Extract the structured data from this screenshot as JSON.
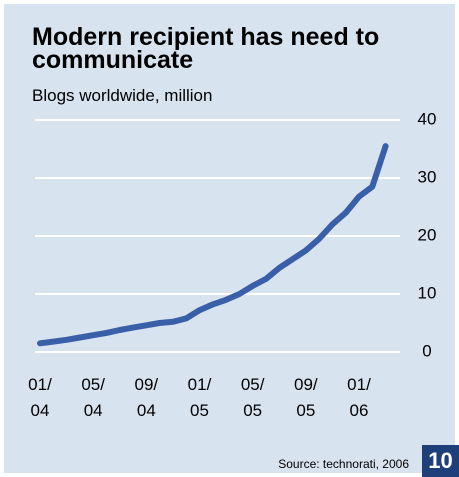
{
  "chart_data": {
    "type": "line",
    "title": "Modern recipient has need to communicate",
    "subtitle": "Blogs worldwide, million",
    "source": "Source: technorati, 2006",
    "page_number": "10",
    "categories": [
      "01/\n04",
      null,
      null,
      null,
      "05/\n04",
      null,
      null,
      null,
      "09/\n04",
      null,
      null,
      null,
      "01/\n05",
      null,
      null,
      null,
      "05/\n05",
      null,
      null,
      null,
      "09/\n05",
      null,
      null,
      null,
      "01/\n06",
      null,
      null
    ],
    "series": [
      {
        "name": "Blogs worldwide",
        "color": "#3a5fa9",
        "values": [
          1.5,
          1.8,
          2.1,
          2.5,
          2.9,
          3.3,
          3.8,
          4.2,
          4.6,
          5.0,
          5.2,
          5.8,
          7.2,
          8.2,
          9.0,
          10.0,
          11.4,
          12.6,
          14.5,
          16.0,
          17.5,
          19.5,
          22.0,
          24.0,
          26.8,
          28.5,
          35.5
        ]
      }
    ],
    "ylim": [
      0,
      40
    ],
    "yticks": [
      0,
      10,
      20,
      30,
      40
    ],
    "grid": true
  }
}
